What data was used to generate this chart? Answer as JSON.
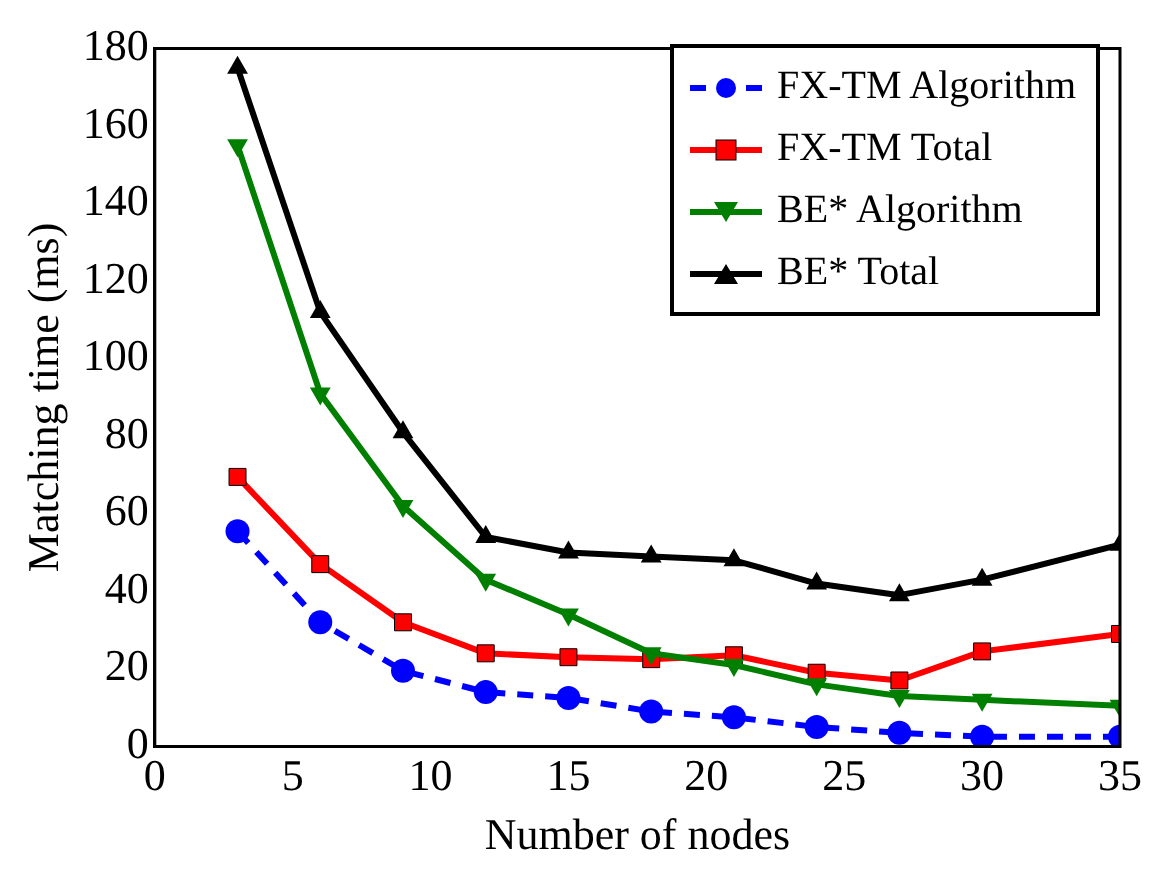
{
  "chart_data": {
    "type": "line",
    "xlabel": "Number of nodes",
    "ylabel": "Matching time (ms)",
    "x": [
      3,
      6,
      9,
      12,
      15,
      18,
      21,
      24,
      27,
      30,
      35
    ],
    "series": [
      {
        "name": "FX-TM Algorithm",
        "color": "#0000ff",
        "marker": "circle",
        "line_style": "dashed",
        "values": [
          55.5,
          32,
          19.5,
          14,
          12.5,
          9,
          7.5,
          5,
          3.5,
          2.5,
          2.5
        ]
      },
      {
        "name": "FX-TM Total",
        "color": "#ff0000",
        "marker": "square",
        "line_style": "solid",
        "values": [
          69.5,
          47,
          32,
          24,
          23,
          22.5,
          23.5,
          19,
          17,
          24.5,
          29
        ]
      },
      {
        "name": "BE* Algorithm",
        "color": "#007f00",
        "marker": "triangle",
        "line_style": "solid",
        "values": [
          155,
          91,
          62,
          43,
          34,
          24,
          21,
          16,
          13,
          12,
          10.5
        ]
      },
      {
        "name": "BE* Total",
        "color": "#000000",
        "marker": "triangle",
        "line_style": "solid",
        "values": [
          175,
          112,
          81,
          54,
          50,
          49,
          48,
          42,
          39,
          43,
          52
        ]
      }
    ],
    "xlim": [
      0,
      35
    ],
    "xticks": [
      0,
      5,
      10,
      15,
      20,
      25,
      30,
      35
    ],
    "ylim": [
      0,
      180
    ],
    "yticks": [
      0,
      20,
      40,
      60,
      80,
      100,
      120,
      140,
      160,
      180
    ],
    "grid": false,
    "legend": "top right"
  }
}
